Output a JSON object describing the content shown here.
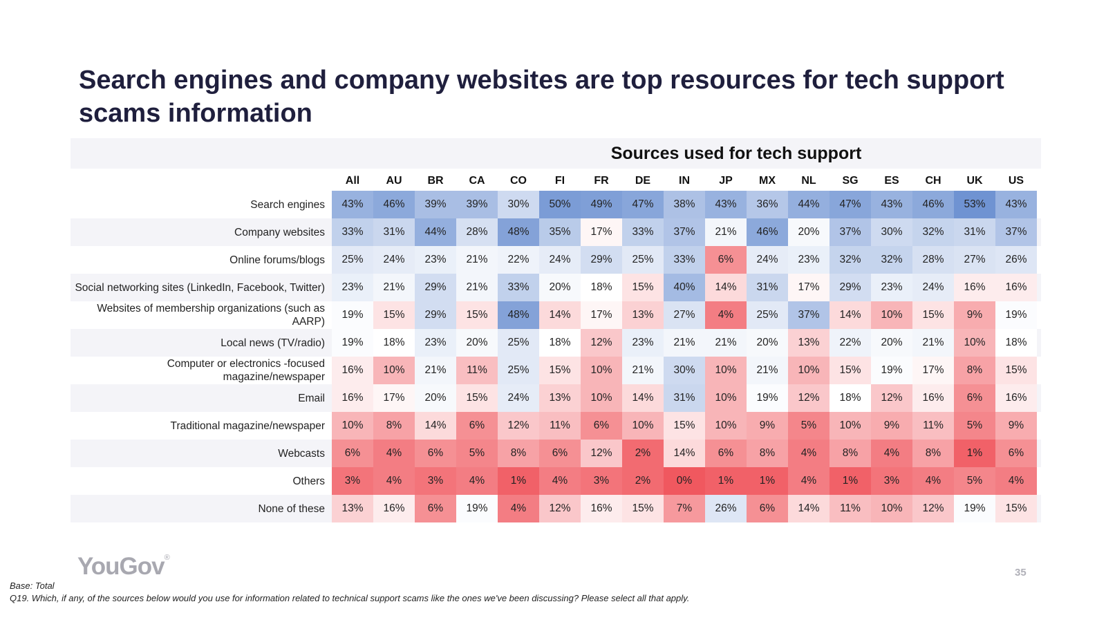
{
  "slide": {
    "title": "Search engines and company websites are top resources for tech support scams information",
    "logo": "YouGov",
    "page_number": "35",
    "base": "Base: Total",
    "question": "Q19. Which, if any, of the sources below would you use for information related to technical support scams like the ones we've been discussing? Please select all that apply."
  },
  "colors": {
    "high": "#6f93d2",
    "mid": "#ffffff",
    "low": "#f0585f",
    "band": "#f4f4f8"
  },
  "chart_data": {
    "type": "heatmap",
    "title": "Sources used for tech support",
    "unit": "%",
    "columns": [
      "All",
      "AU",
      "BR",
      "CA",
      "CO",
      "FI",
      "FR",
      "DE",
      "IN",
      "JP",
      "MX",
      "NL",
      "SG",
      "ES",
      "CH",
      "UK",
      "US"
    ],
    "rows": [
      {
        "label": "Search engines",
        "values": [
          43,
          46,
          39,
          39,
          30,
          50,
          49,
          47,
          38,
          43,
          36,
          44,
          47,
          43,
          46,
          53,
          43
        ]
      },
      {
        "label": "Company websites",
        "values": [
          33,
          31,
          44,
          28,
          48,
          35,
          17,
          33,
          37,
          21,
          46,
          20,
          37,
          30,
          32,
          31,
          37
        ]
      },
      {
        "label": "Online forums/blogs",
        "values": [
          25,
          24,
          23,
          21,
          22,
          24,
          29,
          25,
          33,
          6,
          24,
          23,
          32,
          32,
          28,
          27,
          26
        ]
      },
      {
        "label": "Social networking sites (LinkedIn, Facebook, Twitter)",
        "values": [
          23,
          21,
          29,
          21,
          33,
          20,
          18,
          15,
          40,
          14,
          31,
          17,
          29,
          23,
          24,
          16,
          16
        ]
      },
      {
        "label": "Websites of membership organizations (such as AARP)",
        "values": [
          19,
          15,
          29,
          15,
          48,
          14,
          17,
          13,
          27,
          4,
          25,
          37,
          14,
          10,
          15,
          9,
          19
        ]
      },
      {
        "label": "Local news (TV/radio)",
        "values": [
          19,
          18,
          23,
          20,
          25,
          18,
          12,
          23,
          21,
          21,
          20,
          13,
          22,
          20,
          21,
          10,
          18
        ]
      },
      {
        "label": "Computer or electronics -focused magazine/newspaper",
        "values": [
          16,
          10,
          21,
          11,
          25,
          15,
          10,
          21,
          30,
          10,
          21,
          10,
          15,
          19,
          17,
          8,
          15
        ]
      },
      {
        "label": "Email",
        "values": [
          16,
          17,
          20,
          15,
          24,
          13,
          10,
          14,
          31,
          10,
          19,
          12,
          18,
          12,
          16,
          6,
          16
        ]
      },
      {
        "label": "Traditional magazine/newspaper",
        "values": [
          10,
          8,
          14,
          6,
          12,
          11,
          6,
          10,
          15,
          10,
          9,
          5,
          10,
          9,
          11,
          5,
          9
        ]
      },
      {
        "label": "Webcasts",
        "values": [
          6,
          4,
          6,
          5,
          8,
          6,
          12,
          2,
          14,
          6,
          8,
          4,
          8,
          4,
          8,
          1,
          6
        ]
      },
      {
        "label": "Others",
        "values": [
          3,
          4,
          3,
          4,
          1,
          4,
          3,
          2,
          0,
          1,
          1,
          4,
          1,
          3,
          4,
          5,
          4
        ]
      },
      {
        "label": "None of these",
        "values": [
          13,
          16,
          6,
          19,
          4,
          12,
          16,
          15,
          7,
          26,
          6,
          14,
          11,
          10,
          12,
          19,
          15
        ]
      }
    ]
  }
}
